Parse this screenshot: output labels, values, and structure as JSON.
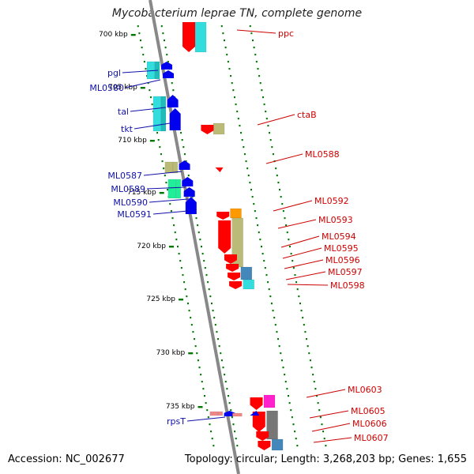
{
  "title": "Mycobacterium leprae TN, complete genome",
  "accession": "Accession: NC_002677",
  "topology": "Topology: circular; Length: 3,268,203 bp; Genes: 1,655",
  "colors": {
    "forward_label": "#cc0000",
    "reverse_label": "#1010aa",
    "forward_gene": "#ff0000",
    "reverse_gene": "#0000ee",
    "cog_cyan": "#33dddd",
    "cog_olive": "#bbbb77",
    "cog_orange": "#ff9900",
    "cog_steel": "#4488bb",
    "cog_magenta": "#ff22cc",
    "cog_gray": "#777777",
    "cog_mint": "#22ee99",
    "tick": "#007700",
    "backbone": "#888888"
  },
  "ticks": [
    {
      "label": "700 kbp"
    },
    {
      "label": "705 kbp"
    },
    {
      "label": "710 kbp"
    },
    {
      "label": "715 kbp"
    },
    {
      "label": "720 kbp"
    },
    {
      "label": "725 kbp"
    },
    {
      "label": "730 kbp"
    },
    {
      "label": "735 kbp"
    }
  ],
  "reverse_genes": [
    "pgl",
    "ML0580",
    "tal",
    "tkt",
    "ML0587",
    "ML0589",
    "ML0590",
    "ML0591",
    "rpsT"
  ],
  "forward_genes": [
    "ppc",
    "ctaB",
    "ML0588",
    "ML0592",
    "ML0593",
    "ML0594",
    "ML0595",
    "ML0596",
    "ML0597",
    "ML0598",
    "ML0603",
    "ML0605",
    "ML0606",
    "ML0607"
  ]
}
